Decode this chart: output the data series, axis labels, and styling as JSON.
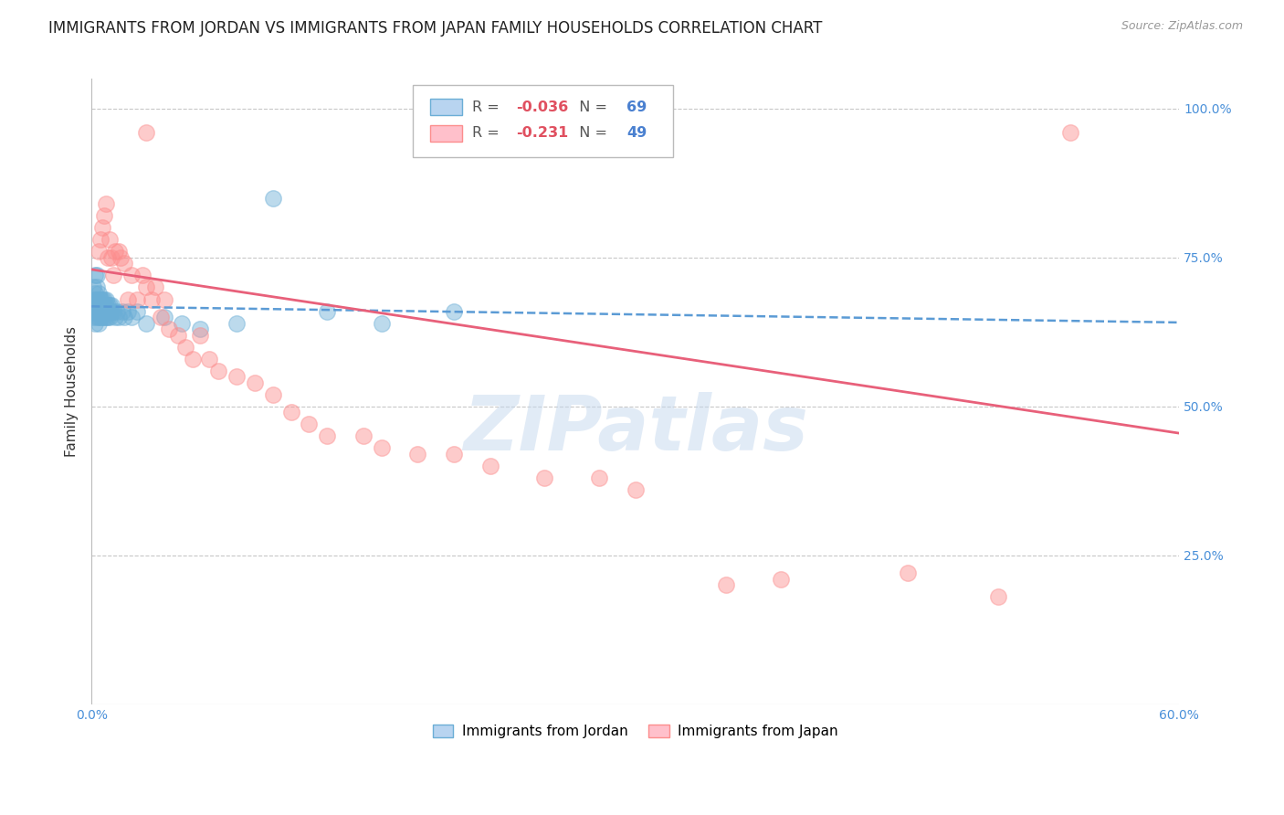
{
  "title": "IMMIGRANTS FROM JORDAN VS IMMIGRANTS FROM JAPAN FAMILY HOUSEHOLDS CORRELATION CHART",
  "source": "Source: ZipAtlas.com",
  "ylabel": "Family Households",
  "xlim": [
    0.0,
    0.6
  ],
  "ylim": [
    0.0,
    1.05
  ],
  "jordan_color": "#6baed6",
  "japan_color": "#fc8d8d",
  "jordan_R": -0.036,
  "jordan_N": 69,
  "japan_R": -0.231,
  "japan_N": 49,
  "jordan_scatter_x": [
    0.001,
    0.001,
    0.001,
    0.001,
    0.002,
    0.002,
    0.002,
    0.002,
    0.002,
    0.003,
    0.003,
    0.003,
    0.003,
    0.003,
    0.003,
    0.004,
    0.004,
    0.004,
    0.004,
    0.004,
    0.004,
    0.004,
    0.005,
    0.005,
    0.005,
    0.005,
    0.005,
    0.005,
    0.006,
    0.006,
    0.006,
    0.006,
    0.006,
    0.006,
    0.007,
    0.007,
    0.007,
    0.007,
    0.007,
    0.008,
    0.008,
    0.008,
    0.008,
    0.009,
    0.009,
    0.009,
    0.01,
    0.01,
    0.01,
    0.011,
    0.011,
    0.012,
    0.013,
    0.014,
    0.015,
    0.017,
    0.018,
    0.02,
    0.022,
    0.025,
    0.03,
    0.04,
    0.05,
    0.06,
    0.08,
    0.1,
    0.13,
    0.16,
    0.2
  ],
  "jordan_scatter_y": [
    0.68,
    0.7,
    0.65,
    0.66,
    0.72,
    0.69,
    0.67,
    0.64,
    0.66,
    0.68,
    0.7,
    0.72,
    0.67,
    0.65,
    0.68,
    0.66,
    0.67,
    0.68,
    0.69,
    0.65,
    0.64,
    0.66,
    0.67,
    0.68,
    0.65,
    0.66,
    0.67,
    0.68,
    0.66,
    0.67,
    0.68,
    0.65,
    0.66,
    0.67,
    0.66,
    0.67,
    0.68,
    0.65,
    0.66,
    0.66,
    0.67,
    0.68,
    0.65,
    0.66,
    0.67,
    0.65,
    0.66,
    0.67,
    0.65,
    0.66,
    0.67,
    0.66,
    0.65,
    0.66,
    0.65,
    0.66,
    0.65,
    0.66,
    0.65,
    0.66,
    0.64,
    0.65,
    0.64,
    0.63,
    0.64,
    0.85,
    0.66,
    0.64,
    0.66
  ],
  "japan_scatter_x": [
    0.004,
    0.005,
    0.006,
    0.007,
    0.008,
    0.009,
    0.01,
    0.011,
    0.012,
    0.013,
    0.015,
    0.016,
    0.018,
    0.02,
    0.022,
    0.025,
    0.028,
    0.03,
    0.033,
    0.035,
    0.038,
    0.04,
    0.043,
    0.048,
    0.052,
    0.056,
    0.06,
    0.065,
    0.07,
    0.08,
    0.09,
    0.1,
    0.11,
    0.12,
    0.13,
    0.15,
    0.16,
    0.18,
    0.2,
    0.22,
    0.25,
    0.28,
    0.35,
    0.38,
    0.45,
    0.5,
    0.54,
    0.3,
    0.03
  ],
  "japan_scatter_y": [
    0.76,
    0.78,
    0.8,
    0.82,
    0.84,
    0.75,
    0.78,
    0.75,
    0.72,
    0.76,
    0.76,
    0.75,
    0.74,
    0.68,
    0.72,
    0.68,
    0.72,
    0.7,
    0.68,
    0.7,
    0.65,
    0.68,
    0.63,
    0.62,
    0.6,
    0.58,
    0.62,
    0.58,
    0.56,
    0.55,
    0.54,
    0.52,
    0.49,
    0.47,
    0.45,
    0.45,
    0.43,
    0.42,
    0.42,
    0.4,
    0.38,
    0.38,
    0.2,
    0.21,
    0.22,
    0.18,
    0.96,
    0.36,
    0.96
  ],
  "jordan_trend_x": [
    0.0,
    0.6
  ],
  "jordan_trend_y": [
    0.668,
    0.641
  ],
  "japan_trend_x": [
    0.0,
    0.6
  ],
  "japan_trend_y": [
    0.73,
    0.455
  ],
  "watermark": "ZIPatlas",
  "background_color": "#ffffff",
  "grid_color": "#c8c8c8",
  "title_fontsize": 12,
  "axis_label_fontsize": 11,
  "tick_fontsize": 10,
  "tick_color": "#4a90d9"
}
